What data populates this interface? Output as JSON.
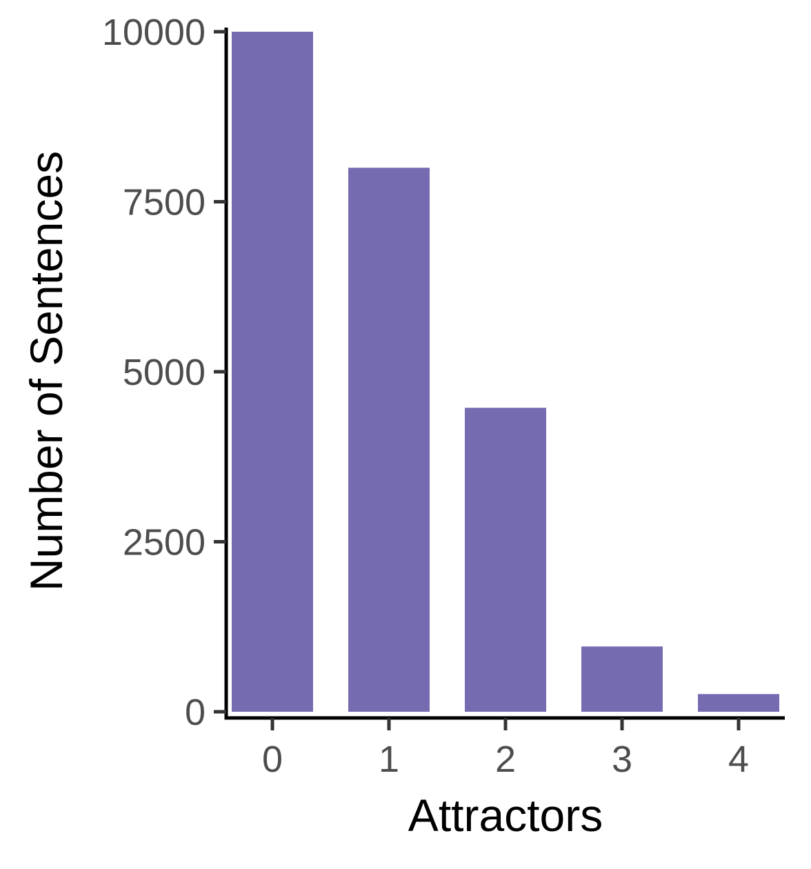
{
  "chart_data": {
    "type": "bar",
    "categories": [
      "0",
      "1",
      "2",
      "3",
      "4"
    ],
    "values": [
      10000,
      8000,
      4470,
      960,
      260
    ],
    "xlabel": "Attractors",
    "ylabel": "Number of Sentences",
    "ylim": [
      0,
      10000
    ],
    "yticks": [
      0,
      2500,
      5000,
      7500,
      10000
    ],
    "ytick_labels": [
      "0",
      "2500",
      "5000",
      "7500",
      "10000"
    ],
    "grid": false,
    "legend": "none",
    "colors": {
      "bar": "#756bb1",
      "axis": "#000000",
      "tick_label": "#4d4d4d"
    }
  }
}
